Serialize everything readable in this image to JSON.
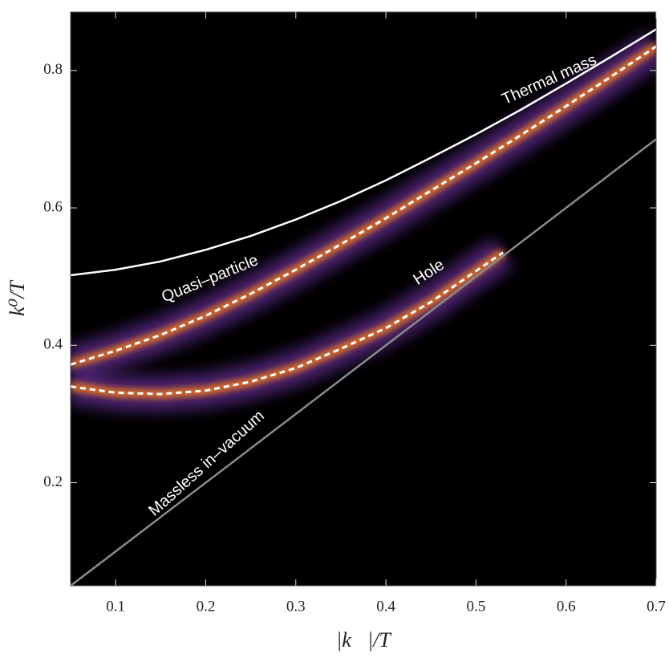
{
  "chart_data": {
    "type": "line",
    "x_label": "|k⃗|/T",
    "y_label": "k⁰/T",
    "xlim": [
      0.05,
      0.7
    ],
    "ylim": [
      0.05,
      0.885
    ],
    "xticks": [
      0.1,
      0.2,
      0.3,
      0.4,
      0.5,
      0.6,
      0.7
    ],
    "yticks": [
      0.2,
      0.4,
      0.6,
      0.8
    ],
    "background": "#000000",
    "series": [
      {
        "name": "Thermal mass",
        "color": "#ffffff",
        "dash": false,
        "x": [
          0.05,
          0.1,
          0.15,
          0.2,
          0.25,
          0.3,
          0.35,
          0.4,
          0.45,
          0.5,
          0.55,
          0.6,
          0.65,
          0.7
        ],
        "values": [
          0.502,
          0.51,
          0.522,
          0.539,
          0.559,
          0.583,
          0.61,
          0.64,
          0.673,
          0.707,
          0.743,
          0.781,
          0.82,
          0.86
        ]
      },
      {
        "name": "Quasi–particle",
        "color": "#ffffff",
        "dash": true,
        "x": [
          0.05,
          0.1,
          0.15,
          0.2,
          0.25,
          0.3,
          0.35,
          0.4,
          0.45,
          0.5,
          0.55,
          0.6,
          0.65,
          0.7
        ],
        "values": [
          0.372,
          0.392,
          0.415,
          0.443,
          0.475,
          0.51,
          0.547,
          0.585,
          0.625,
          0.665,
          0.706,
          0.748,
          0.791,
          0.835
        ]
      },
      {
        "name": "Hole",
        "color": "#ffffff",
        "dash": true,
        "x": [
          0.05,
          0.1,
          0.15,
          0.2,
          0.25,
          0.3,
          0.35,
          0.4,
          0.45,
          0.5,
          0.53
        ],
        "values": [
          0.34,
          0.331,
          0.329,
          0.334,
          0.347,
          0.367,
          0.395,
          0.425,
          0.463,
          0.508,
          0.535
        ]
      },
      {
        "name": "Massless in–vacuum",
        "color": "#8a8a8a",
        "dash": false,
        "x": [
          0.05,
          0.7
        ],
        "values": [
          0.05,
          0.7
        ]
      }
    ]
  }
}
